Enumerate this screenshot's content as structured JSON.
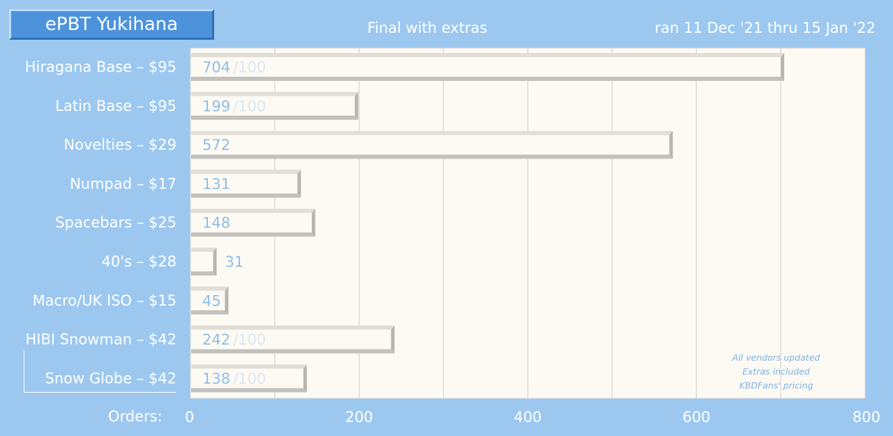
{
  "title": "ePBT Yukihana",
  "subtitle": "Final with extras",
  "date_range": "ran 11 Dec '21 thru 15 Jan '22",
  "x_axis_label": "Orders:",
  "notes": [
    "All vendors updated",
    "Extras included",
    "KBDFans' pricing"
  ],
  "colors": {
    "background": "#9cc8f0",
    "plot_background": "#fcfaf3",
    "bar_fill": "#fcfaf3",
    "value_text": "#8fbde9",
    "moq_text": "#dbe8f4"
  },
  "chart_data": {
    "type": "bar",
    "orientation": "horizontal",
    "categories": [
      "Hiragana Base – $95",
      "Latin Base – $95",
      "Novelties – $29",
      "Numpad – $17",
      "Spacebars – $25",
      "40's – $28",
      "Macro/UK ISO – $15",
      "HIBI  Snowman – $42",
      "Snow Globe – $42"
    ],
    "values": [
      704,
      199,
      572,
      131,
      148,
      31,
      45,
      242,
      138
    ],
    "value_labels": [
      "704",
      "199",
      "572",
      "131",
      "148",
      "31",
      "45",
      "242",
      "138"
    ],
    "moq_labels": [
      "/100",
      "/100",
      "",
      "",
      "",
      "",
      "",
      "/100",
      "/100"
    ],
    "xlim": [
      0,
      800
    ],
    "xticks": [
      0,
      200,
      400,
      600,
      800
    ],
    "tick_labels": [
      "0",
      "200",
      "400",
      "600",
      "800"
    ],
    "minor_grid_step": 100,
    "grid": true,
    "legend": "none"
  }
}
